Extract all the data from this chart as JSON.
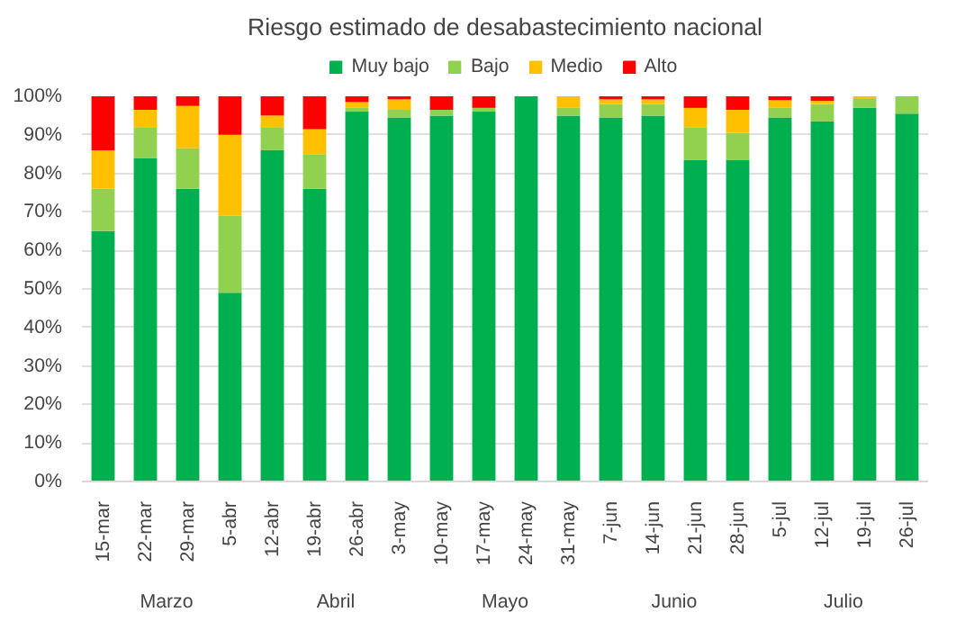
{
  "chart_data": {
    "type": "bar",
    "title": "Riesgo estimado de desabastecimiento nacional",
    "stacked": true,
    "categories": [
      "15-mar",
      "22-mar",
      "29-mar",
      "5-abr",
      "12-abr",
      "19-abr",
      "26-abr",
      "3-may",
      "10-may",
      "17-may",
      "24-may",
      "31-may",
      "7-jun",
      "14-jun",
      "21-jun",
      "28-jun",
      "5-jul",
      "12-jul",
      "19-jul",
      "26-jul"
    ],
    "series": [
      {
        "name": "Muy bajo",
        "color": "#00b050",
        "values": [
          65,
          84,
          76,
          49,
          86,
          76,
          96,
          94.5,
          95,
          96,
          100,
          95,
          94.5,
          95,
          83.5,
          83.5,
          94.5,
          93.5,
          97,
          95.5
        ]
      },
      {
        "name": "Bajo",
        "color": "#92d050",
        "values": [
          11,
          8,
          10.5,
          20,
          6,
          9,
          1,
          2,
          1.5,
          1,
          0,
          2,
          3.5,
          3,
          8.5,
          7,
          2.5,
          4.5,
          2.5,
          4.5
        ]
      },
      {
        "name": "Medio",
        "color": "#ffc000",
        "values": [
          10,
          4.5,
          11,
          21,
          3,
          6.5,
          1.5,
          2.7,
          0,
          0,
          0,
          3,
          1.2,
          1.2,
          5,
          6,
          2,
          0.8,
          0.5,
          0
        ]
      },
      {
        "name": "Alto",
        "color": "#ff0000",
        "values": [
          14,
          3.5,
          2.5,
          10,
          5,
          8.5,
          1.5,
          0.8,
          3.5,
          3,
          0,
          0,
          0.8,
          0.8,
          3,
          3.5,
          1,
          1.2,
          0,
          0
        ]
      }
    ],
    "ylim": [
      0,
      100
    ],
    "yticks": [
      {
        "value": 0,
        "label": "0%"
      },
      {
        "value": 10,
        "label": "10%"
      },
      {
        "value": 20,
        "label": "20%"
      },
      {
        "value": 30,
        "label": "30%"
      },
      {
        "value": 40,
        "label": "40%"
      },
      {
        "value": 50,
        "label": "50%"
      },
      {
        "value": 60,
        "label": "60%"
      },
      {
        "value": 70,
        "label": "70%"
      },
      {
        "value": 80,
        "label": "80%"
      },
      {
        "value": 90,
        "label": "90%"
      },
      {
        "value": 100,
        "label": "100%"
      }
    ],
    "grid": "y",
    "legend": "top",
    "annotations": [
      "Marzo",
      "Abril",
      "Mayo",
      "Junio",
      "Julio"
    ]
  }
}
